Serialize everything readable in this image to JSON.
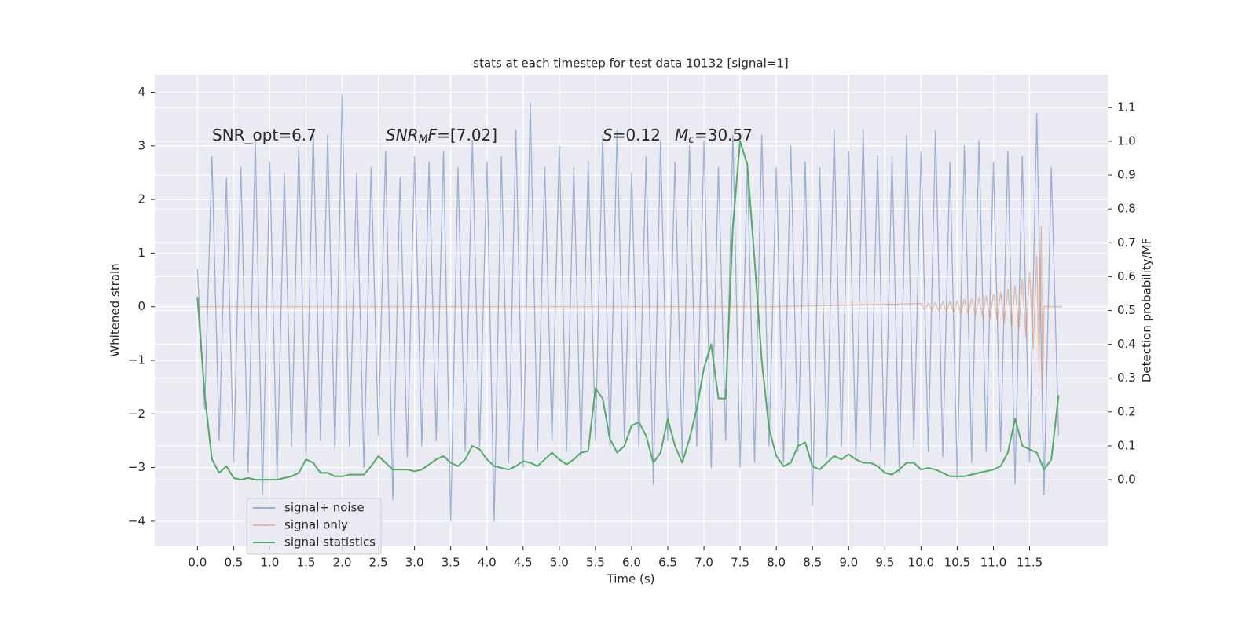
{
  "chart_data": {
    "type": "line",
    "title": "stats at each timestep for test data 10132 [signal=1]",
    "xlabel": "Time (s)",
    "ylabel": "Whitened strain",
    "y2label": "Detection probability/MF",
    "annotations": [
      [
        {
          "text": "SNR_opt=6.7",
          "italic": false,
          "sub": false
        }
      ],
      [
        {
          "text": "SNR",
          "italic": true,
          "sub": false
        },
        {
          "text": "M",
          "italic": true,
          "sub": true
        },
        {
          "text": "F",
          "italic": true,
          "sub": false
        },
        {
          "text": "=[7.02]",
          "italic": false,
          "sub": false
        }
      ],
      [
        {
          "text": "S",
          "italic": true,
          "sub": false
        },
        {
          "text": "=0.12",
          "italic": false,
          "sub": false
        }
      ],
      [
        {
          "text": "M",
          "italic": true,
          "sub": false
        },
        {
          "text": "c",
          "italic": true,
          "sub": true
        },
        {
          "text": "=30.57",
          "italic": false,
          "sub": false
        }
      ]
    ],
    "x": [
      0.0,
      0.1,
      0.2,
      0.3,
      0.4,
      0.5,
      0.6,
      0.7,
      0.8,
      0.9,
      1.0,
      1.1,
      1.2,
      1.3,
      1.4,
      1.5,
      1.6,
      1.7,
      1.8,
      1.9,
      2.0,
      2.1,
      2.2,
      2.3,
      2.4,
      2.5,
      2.6,
      2.7,
      2.8,
      2.9,
      3.0,
      3.1,
      3.2,
      3.3,
      3.4,
      3.5,
      3.6,
      3.7,
      3.8,
      3.9,
      4.0,
      4.1,
      4.2,
      4.3,
      4.4,
      4.5,
      4.6,
      4.7,
      4.8,
      4.9,
      5.0,
      5.1,
      5.2,
      5.3,
      5.4,
      5.5,
      5.6,
      5.7,
      5.8,
      5.9,
      6.0,
      6.1,
      6.2,
      6.3,
      6.4,
      6.5,
      6.6,
      6.7,
      6.8,
      6.9,
      7.0,
      7.1,
      7.2,
      7.3,
      7.4,
      7.5,
      7.6,
      7.7,
      7.8,
      7.9,
      8.0,
      8.1,
      8.2,
      8.3,
      8.4,
      8.5,
      8.6,
      8.7,
      8.8,
      8.9,
      9.0,
      9.1,
      9.2,
      9.3,
      9.4,
      9.5,
      9.6,
      9.7,
      9.8,
      9.9,
      10.0,
      10.1,
      10.2,
      10.3,
      10.4,
      10.5,
      10.6,
      10.7,
      10.8,
      10.9,
      11.0,
      11.1,
      11.2,
      11.3,
      11.4,
      11.5,
      11.6,
      11.7,
      11.8,
      11.9
    ],
    "series": [
      {
        "name": "signal+ noise",
        "color": "#4c72b0",
        "opacity": 0.5,
        "axis": "y",
        "values": [
          0.7,
          -1.9,
          2.8,
          -2.5,
          2.4,
          -2.9,
          2.6,
          -3.1,
          3.1,
          -3.5,
          2.7,
          -3.2,
          2.5,
          -2.6,
          3.0,
          -2.8,
          3.3,
          -2.5,
          3.2,
          -2.7,
          3.95,
          -2.6,
          2.5,
          -3.0,
          2.6,
          -2.4,
          2.9,
          -3.6,
          2.4,
          -2.8,
          2.8,
          -2.6,
          2.7,
          -2.5,
          2.9,
          -4.0,
          2.6,
          -2.7,
          3.1,
          -2.6,
          2.7,
          -4.0,
          2.8,
          -2.9,
          3.3,
          -3.0,
          3.8,
          -2.7,
          2.6,
          -2.5,
          3.0,
          -2.7,
          2.6,
          -2.8,
          2.7,
          -2.5,
          3.2,
          -2.6,
          3.3,
          -2.5,
          2.5,
          -2.6,
          2.8,
          -3.3,
          3.1,
          -2.5,
          2.7,
          -2.8,
          3.0,
          -2.6,
          3.1,
          -3.0,
          2.6,
          -2.5,
          3.2,
          -3.0,
          2.7,
          -2.9,
          3.2,
          -2.6,
          2.6,
          -2.9,
          3.0,
          -2.7,
          2.7,
          -3.7,
          2.6,
          -2.8,
          3.3,
          -2.6,
          2.9,
          -2.8,
          3.3,
          -2.7,
          2.8,
          -3.0,
          2.8,
          -3.1,
          3.2,
          -2.6,
          2.9,
          -2.7,
          3.3,
          -2.8,
          2.7,
          -3.2,
          3.0,
          -2.9,
          3.1,
          -2.7,
          2.7,
          -2.7,
          2.9,
          -3.3,
          2.8,
          -2.9,
          3.6,
          -3.5,
          2.6,
          -2.4
        ]
      },
      {
        "name": "signal only",
        "color": "#dd8452",
        "opacity": 0.5,
        "axis": "y",
        "x": [
          0.0,
          8.0,
          10.0,
          10.05,
          10.1,
          10.15,
          10.2,
          10.25,
          10.3,
          10.35,
          10.4,
          10.45,
          10.5,
          10.55,
          10.6,
          10.65,
          10.7,
          10.75,
          10.8,
          10.85,
          10.9,
          10.95,
          11.0,
          11.05,
          11.1,
          11.15,
          11.2,
          11.25,
          11.3,
          11.35,
          11.4,
          11.45,
          11.5,
          11.55,
          11.6,
          11.63,
          11.66,
          11.68,
          11.7,
          11.95
        ],
        "values": [
          0,
          0,
          0.06,
          -0.06,
          0.07,
          -0.07,
          0.08,
          -0.08,
          0.09,
          -0.09,
          0.1,
          -0.1,
          0.11,
          -0.12,
          0.13,
          -0.14,
          0.15,
          -0.16,
          0.17,
          -0.18,
          0.2,
          -0.21,
          0.23,
          -0.25,
          0.27,
          -0.3,
          0.33,
          -0.36,
          0.4,
          -0.45,
          0.5,
          -0.57,
          0.65,
          -0.78,
          0.95,
          -1.2,
          1.5,
          -1.55,
          0,
          0
        ]
      },
      {
        "name": "signal statistics",
        "color": "#55a868",
        "opacity": 1,
        "axis": "y2",
        "values": [
          0.54,
          0.25,
          0.06,
          0.02,
          0.04,
          0.005,
          0.0,
          0.005,
          0.0,
          0.0,
          0.0,
          0.0,
          0.005,
          0.01,
          0.02,
          0.06,
          0.05,
          0.02,
          0.02,
          0.01,
          0.01,
          0.015,
          0.015,
          0.015,
          0.04,
          0.07,
          0.05,
          0.03,
          0.03,
          0.03,
          0.025,
          0.03,
          0.045,
          0.06,
          0.07,
          0.05,
          0.04,
          0.06,
          0.1,
          0.09,
          0.06,
          0.04,
          0.035,
          0.03,
          0.04,
          0.055,
          0.05,
          0.04,
          0.06,
          0.08,
          0.06,
          0.045,
          0.06,
          0.08,
          0.085,
          0.27,
          0.24,
          0.12,
          0.08,
          0.1,
          0.16,
          0.17,
          0.13,
          0.05,
          0.08,
          0.18,
          0.1,
          0.05,
          0.12,
          0.21,
          0.33,
          0.4,
          0.24,
          0.24,
          0.75,
          1.0,
          0.93,
          0.65,
          0.35,
          0.15,
          0.07,
          0.04,
          0.05,
          0.1,
          0.11,
          0.04,
          0.03,
          0.05,
          0.07,
          0.06,
          0.075,
          0.06,
          0.05,
          0.05,
          0.04,
          0.02,
          0.015,
          0.03,
          0.05,
          0.05,
          0.03,
          0.035,
          0.03,
          0.02,
          0.01,
          0.01,
          0.01,
          0.015,
          0.02,
          0.025,
          0.03,
          0.04,
          0.08,
          0.18,
          0.1,
          0.09,
          0.08,
          0.03,
          0.06,
          0.25
        ]
      }
    ],
    "xlim": [
      -0.59,
      12.58
    ],
    "ylim": [
      -4.47,
      4.33
    ],
    "y2lim": [
      -0.197,
      1.197
    ],
    "xticks": [
      {
        "value": 0,
        "label": "0.0"
      },
      0.5,
      {
        "value": 1,
        "label": "1.0"
      },
      1.5,
      {
        "value": 2,
        "label": "2.0"
      },
      2.5,
      {
        "value": 3,
        "label": "3.0"
      },
      3.5,
      {
        "value": 4,
        "label": "4.0"
      },
      4.5,
      {
        "value": 5,
        "label": "5.0"
      },
      5.5,
      {
        "value": 6,
        "label": "6.0"
      },
      6.5,
      {
        "value": 7,
        "label": "7.0"
      },
      7.5,
      {
        "value": 8,
        "label": "8.0"
      },
      8.5,
      {
        "value": 9,
        "label": "9.0"
      },
      9.5,
      {
        "value": 10,
        "label": "10.0"
      },
      10.5,
      {
        "value": 11,
        "label": "11.0"
      },
      11.5
    ],
    "yticks": [
      {
        "value": -4,
        "label": "−4"
      },
      {
        "value": -3,
        "label": "−3"
      },
      {
        "value": -2,
        "label": "−2"
      },
      {
        "value": -1,
        "label": "−1"
      },
      0,
      1,
      2,
      3,
      4
    ],
    "y2ticks": [
      {
        "value": 0,
        "label": "0.0"
      },
      0.1,
      0.2,
      0.3,
      0.4,
      0.5,
      0.6,
      0.7,
      0.8,
      0.9,
      {
        "value": 1,
        "label": "1.0"
      },
      1.1
    ],
    "grid": true,
    "legend": "lower left"
  }
}
